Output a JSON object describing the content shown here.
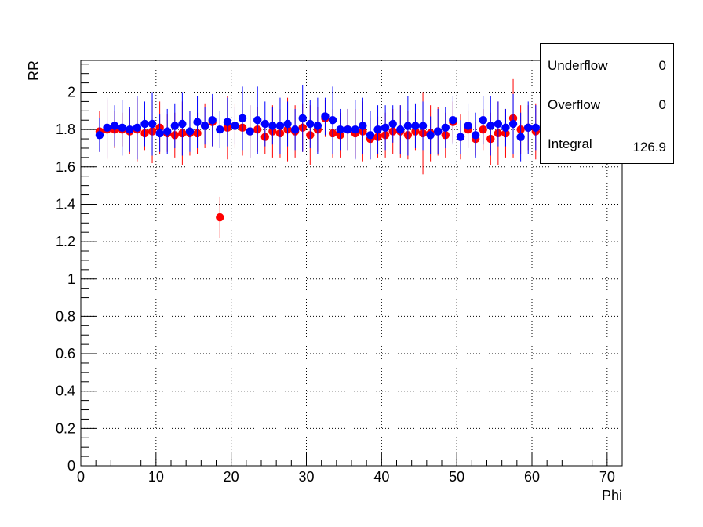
{
  "chart_data": {
    "type": "scatter",
    "xlabel": "Phi",
    "ylabel": "RR",
    "xlim": [
      0,
      72
    ],
    "ylim": [
      0,
      2.17
    ],
    "xticks": [
      0,
      10,
      20,
      30,
      40,
      50,
      60,
      70
    ],
    "yticks": [
      0,
      0.2,
      0.4,
      0.6,
      0.8,
      1,
      1.2,
      1.4,
      1.6,
      1.8,
      2
    ],
    "grid": true,
    "series": [
      {
        "color": "#ff0000",
        "x": [
          2.5,
          3.5,
          4.5,
          5.5,
          6.5,
          7.5,
          8.5,
          9.5,
          10.5,
          11.5,
          12.5,
          13.5,
          14.5,
          15.5,
          16.5,
          17.5,
          18.5,
          19.5,
          20.5,
          21.5,
          22.5,
          23.5,
          24.5,
          25.5,
          26.5,
          27.5,
          28.5,
          29.5,
          30.5,
          31.5,
          32.5,
          33.5,
          34.5,
          35.5,
          36.5,
          37.5,
          38.5,
          39.5,
          40.5,
          41.5,
          42.5,
          43.5,
          44.5,
          45.5,
          46.5,
          47.5,
          48.5,
          49.5,
          50.5,
          51.5,
          52.5,
          53.5,
          54.5,
          55.5,
          56.5,
          57.5,
          58.5,
          59.5,
          60.5
        ],
        "y": [
          1.79,
          1.8,
          1.8,
          1.8,
          1.79,
          1.8,
          1.78,
          1.79,
          1.81,
          1.78,
          1.77,
          1.78,
          1.78,
          1.78,
          1.82,
          1.84,
          1.33,
          1.81,
          1.82,
          1.81,
          1.79,
          1.8,
          1.76,
          1.79,
          1.78,
          1.8,
          1.79,
          1.81,
          1.77,
          1.8,
          1.86,
          1.78,
          1.77,
          1.8,
          1.78,
          1.79,
          1.75,
          1.76,
          1.77,
          1.79,
          1.79,
          1.77,
          1.79,
          1.78,
          1.78,
          1.79,
          1.77,
          1.84,
          1.76,
          1.8,
          1.75,
          1.8,
          1.75,
          1.78,
          1.78,
          1.86,
          1.8,
          1.81,
          1.79
        ],
        "err": [
          0.11,
          0.16,
          0.1,
          0.09,
          0.12,
          0.17,
          0.09,
          0.17,
          0.14,
          0.1,
          0.12,
          0.17,
          0.12,
          0.11,
          0.12,
          0.13,
          0.11,
          0.17,
          0.12,
          0.15,
          0.14,
          0.12,
          0.09,
          0.14,
          0.13,
          0.17,
          0.14,
          0.13,
          0.16,
          0.12,
          0.1,
          0.13,
          0.12,
          0.11,
          0.13,
          0.16,
          0.11,
          0.11,
          0.12,
          0.12,
          0.14,
          0.13,
          0.1,
          0.22,
          0.15,
          0.13,
          0.12,
          0.11,
          0.12,
          0.1,
          0.09,
          0.11,
          0.14,
          0.17,
          0.13,
          0.21,
          0.13,
          0.12,
          0.15
        ]
      },
      {
        "color": "#0000ff",
        "x": [
          2.5,
          3.5,
          4.5,
          5.5,
          6.5,
          7.5,
          8.5,
          9.5,
          10.5,
          11.5,
          12.5,
          13.5,
          14.5,
          15.5,
          16.5,
          17.5,
          18.5,
          19.5,
          20.5,
          21.5,
          22.5,
          23.5,
          24.5,
          25.5,
          26.5,
          27.5,
          28.5,
          29.5,
          30.5,
          31.5,
          32.5,
          33.5,
          34.5,
          35.5,
          36.5,
          37.5,
          38.5,
          39.5,
          40.5,
          41.5,
          42.5,
          43.5,
          44.5,
          45.5,
          46.5,
          47.5,
          48.5,
          49.5,
          50.5,
          51.5,
          52.5,
          53.5,
          54.5,
          55.5,
          56.5,
          57.5,
          58.5,
          59.5,
          60.5
        ],
        "y": [
          1.77,
          1.81,
          1.82,
          1.81,
          1.8,
          1.81,
          1.83,
          1.83,
          1.78,
          1.79,
          1.82,
          1.83,
          1.79,
          1.84,
          1.82,
          1.85,
          1.8,
          1.84,
          1.82,
          1.86,
          1.79,
          1.85,
          1.83,
          1.82,
          1.82,
          1.83,
          1.8,
          1.86,
          1.83,
          1.82,
          1.87,
          1.85,
          1.8,
          1.8,
          1.8,
          1.82,
          1.77,
          1.8,
          1.81,
          1.83,
          1.8,
          1.82,
          1.82,
          1.82,
          1.77,
          1.79,
          1.81,
          1.85,
          1.76,
          1.82,
          1.77,
          1.85,
          1.82,
          1.83,
          1.81,
          1.83,
          1.76,
          1.81,
          1.81
        ],
        "err": [
          0.09,
          0.16,
          0.11,
          0.15,
          0.12,
          0.17,
          0.12,
          0.17,
          0.1,
          0.12,
          0.12,
          0.17,
          0.11,
          0.14,
          0.1,
          0.14,
          0.1,
          0.13,
          0.1,
          0.17,
          0.14,
          0.18,
          0.12,
          0.1,
          0.15,
          0.12,
          0.11,
          0.18,
          0.13,
          0.15,
          0.1,
          0.18,
          0.11,
          0.11,
          0.16,
          0.15,
          0.13,
          0.13,
          0.12,
          0.1,
          0.13,
          0.16,
          0.12,
          0.13,
          0.1,
          0.12,
          0.11,
          0.13,
          0.09,
          0.12,
          0.12,
          0.13,
          0.16,
          0.12,
          0.1,
          0.16,
          0.13,
          0.14,
          0.12
        ]
      }
    ]
  },
  "stats": {
    "underflow_label": "Underflow",
    "underflow_value": "0",
    "overflow_label": "Overflow",
    "overflow_value": "0",
    "integral_label": "Integral",
    "integral_value": "126.9"
  }
}
